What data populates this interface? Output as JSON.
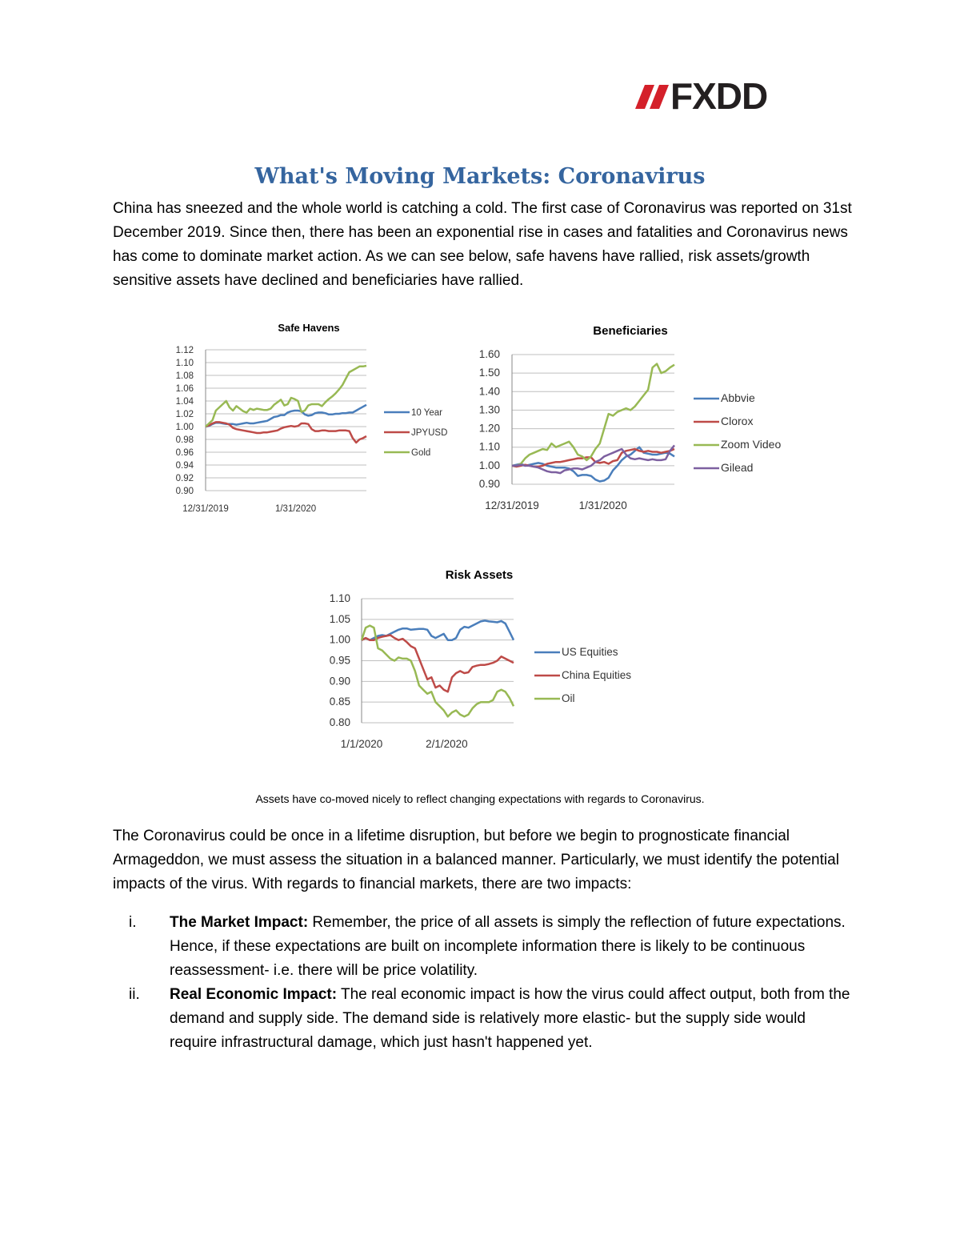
{
  "logo": {
    "text": "FXDD",
    "slash_color": "#d4202a",
    "text_color": "#231f20"
  },
  "title": "What's Moving Markets: Coronavirus",
  "intro": "China has sneezed and the whole world is catching a cold. The first case of Coronavirus was reported on 31st December 2019. Since then, there has been an exponential rise in cases and fatalities and Coronavirus news has come to dominate market action. As we can see below, safe havens have rallied, risk assets/growth sensitive assets have declined and beneficiaries have rallied.",
  "chart_data": [
    {
      "type": "line",
      "title": "Safe Havens",
      "x_ticks": [
        "12/31/2019",
        "1/31/2020"
      ],
      "y_ticks": [
        "1.12",
        "1.10",
        "1.08",
        "1.06",
        "1.04",
        "1.02",
        "1.00",
        "0.98",
        "0.96",
        "0.94",
        "0.92",
        "0.90"
      ],
      "ylim": [
        0.9,
        1.12
      ],
      "grid": true,
      "legend": "right",
      "series": [
        {
          "name": "10 Year",
          "color": "#4a7ebb",
          "values": [
            1.0,
            1.001,
            1.004,
            1.006,
            1.006,
            1.005,
            1.004,
            1.004,
            1.004,
            1.003,
            1.004,
            1.005,
            1.006,
            1.005,
            1.005,
            1.006,
            1.007,
            1.008,
            1.009,
            1.012,
            1.015,
            1.016,
            1.018,
            1.018,
            1.022,
            1.024,
            1.025,
            1.025,
            1.024,
            1.019,
            1.017,
            1.018,
            1.021,
            1.022,
            1.022,
            1.021,
            1.019,
            1.019,
            1.02,
            1.02,
            1.021,
            1.021,
            1.022,
            1.022,
            1.025,
            1.028,
            1.031,
            1.034
          ]
        },
        {
          "name": "JPYUSD",
          "color": "#be4b48",
          "values": [
            1.0,
            1.002,
            1.005,
            1.007,
            1.007,
            1.006,
            1.005,
            1.003,
            0.998,
            0.996,
            0.995,
            0.994,
            0.993,
            0.992,
            0.991,
            0.99,
            0.99,
            0.991,
            0.991,
            0.992,
            0.993,
            0.994,
            0.997,
            0.999,
            1.0,
            1.001,
            1.0,
            1.001,
            1.005,
            1.005,
            1.004,
            0.996,
            0.993,
            0.993,
            0.994,
            0.994,
            0.993,
            0.993,
            0.993,
            0.994,
            0.994,
            0.994,
            0.993,
            0.982,
            0.975,
            0.98,
            0.982,
            0.985
          ]
        },
        {
          "name": "Gold",
          "color": "#98b954",
          "values": [
            1.0,
            1.005,
            1.01,
            1.025,
            1.03,
            1.035,
            1.04,
            1.03,
            1.025,
            1.032,
            1.028,
            1.024,
            1.022,
            1.028,
            1.026,
            1.028,
            1.027,
            1.026,
            1.026,
            1.028,
            1.034,
            1.038,
            1.042,
            1.033,
            1.035,
            1.045,
            1.043,
            1.04,
            1.023,
            1.025,
            1.033,
            1.035,
            1.035,
            1.035,
            1.032,
            1.038,
            1.043,
            1.047,
            1.052,
            1.058,
            1.065,
            1.075,
            1.085,
            1.088,
            1.091,
            1.094,
            1.094,
            1.095
          ]
        }
      ]
    },
    {
      "type": "line",
      "title": "Beneficiaries",
      "x_ticks": [
        "12/31/2019",
        "1/31/2020"
      ],
      "y_ticks": [
        "1.60",
        "1.50",
        "1.40",
        "1.30",
        "1.20",
        "1.10",
        "1.00",
        "0.90"
      ],
      "ylim": [
        0.9,
        1.6
      ],
      "grid": true,
      "legend": "right",
      "series": [
        {
          "name": "Abbvie",
          "color": "#4a7ebb",
          "values": [
            1.0,
            1.005,
            1.01,
            1.0,
            1.005,
            1.01,
            1.015,
            1.01,
            1.0,
            0.995,
            0.99,
            0.99,
            0.99,
            0.985,
            0.97,
            0.945,
            0.95,
            0.95,
            0.945,
            0.925,
            0.915,
            0.92,
            0.935,
            0.975,
            1.0,
            1.03,
            1.05,
            1.06,
            1.08,
            1.1,
            1.07,
            1.065,
            1.06,
            1.06,
            1.065,
            1.07,
            1.065,
            1.05
          ]
        },
        {
          "name": "Clorox",
          "color": "#be4b48",
          "values": [
            1.0,
            0.995,
            1.0,
            1.005,
            1.0,
            0.995,
            0.995,
            1.0,
            1.01,
            1.015,
            1.02,
            1.02,
            1.025,
            1.03,
            1.035,
            1.04,
            1.04,
            1.045,
            1.045,
            1.02,
            1.015,
            1.02,
            1.01,
            1.025,
            1.03,
            1.07,
            1.08,
            1.085,
            1.09,
            1.08,
            1.075,
            1.08,
            1.075,
            1.075,
            1.07,
            1.075,
            1.08,
            1.09
          ]
        },
        {
          "name": "Zoom Video",
          "color": "#98b954",
          "values": [
            1.0,
            1.0,
            1.01,
            1.04,
            1.06,
            1.07,
            1.08,
            1.09,
            1.085,
            1.12,
            1.1,
            1.11,
            1.12,
            1.13,
            1.1,
            1.06,
            1.05,
            1.03,
            1.05,
            1.09,
            1.12,
            1.2,
            1.28,
            1.27,
            1.29,
            1.3,
            1.31,
            1.3,
            1.32,
            1.35,
            1.38,
            1.41,
            1.53,
            1.55,
            1.5,
            1.51,
            1.53,
            1.545
          ]
        },
        {
          "name": "Gilead",
          "color": "#7d60a0",
          "values": [
            1.0,
            1.0,
            1.005,
            1.0,
            1.0,
            0.995,
            0.99,
            0.98,
            0.97,
            0.965,
            0.965,
            0.96,
            0.975,
            0.98,
            0.985,
            0.985,
            0.98,
            0.99,
            1.0,
            1.02,
            1.03,
            1.05,
            1.06,
            1.07,
            1.08,
            1.09,
            1.06,
            1.04,
            1.035,
            1.04,
            1.035,
            1.03,
            1.035,
            1.03,
            1.03,
            1.035,
            1.08,
            1.11
          ]
        }
      ]
    },
    {
      "type": "line",
      "title": "Risk Assets",
      "x_ticks": [
        "1/1/2020",
        "2/1/2020"
      ],
      "y_ticks": [
        "1.10",
        "1.05",
        "1.00",
        "0.95",
        "0.90",
        "0.85",
        "0.80"
      ],
      "ylim": [
        0.8,
        1.1
      ],
      "grid": true,
      "legend": "right",
      "series": [
        {
          "name": "US Equities",
          "color": "#4a7ebb",
          "values": [
            1.0,
            1.005,
            1.0,
            1.005,
            1.01,
            1.012,
            1.01,
            1.015,
            1.02,
            1.025,
            1.028,
            1.028,
            1.025,
            1.026,
            1.027,
            1.027,
            1.025,
            1.01,
            1.005,
            1.01,
            1.015,
            1.0,
            1.0,
            1.005,
            1.025,
            1.032,
            1.03,
            1.035,
            1.04,
            1.045,
            1.047,
            1.045,
            1.044,
            1.043,
            1.046,
            1.04,
            1.02,
            1.0
          ]
        },
        {
          "name": "China Equities",
          "color": "#be4b48",
          "values": [
            1.0,
            1.005,
            1.0,
            1.0,
            1.005,
            1.008,
            1.01,
            1.012,
            1.005,
            1.0,
            1.003,
            0.995,
            0.985,
            0.98,
            0.955,
            0.93,
            0.905,
            0.91,
            0.885,
            0.89,
            0.88,
            0.875,
            0.91,
            0.92,
            0.925,
            0.92,
            0.922,
            0.935,
            0.938,
            0.94,
            0.94,
            0.942,
            0.945,
            0.95,
            0.96,
            0.955,
            0.95,
            0.945
          ]
        },
        {
          "name": "Oil",
          "color": "#98b954",
          "values": [
            1.0,
            1.03,
            1.035,
            1.03,
            0.98,
            0.975,
            0.965,
            0.955,
            0.95,
            0.958,
            0.955,
            0.955,
            0.95,
            0.925,
            0.89,
            0.88,
            0.87,
            0.875,
            0.85,
            0.84,
            0.83,
            0.815,
            0.825,
            0.83,
            0.82,
            0.815,
            0.82,
            0.835,
            0.845,
            0.85,
            0.85,
            0.85,
            0.855,
            0.875,
            0.88,
            0.875,
            0.86,
            0.84
          ]
        }
      ]
    }
  ],
  "caption": "Assets have co-moved nicely to reflect changing expectations with regards to Coronavirus.",
  "body_paragraph": "The Coronavirus could be once in a lifetime disruption, but before we begin to prognosticate financial Armageddon, we must assess the situation in a balanced manner. Particularly, we must identify the potential impacts of the virus. With regards to financial markets, there are two impacts:",
  "impacts": [
    {
      "num": "i.",
      "heading": "The Market Impact:",
      "text": " Remember, the price of all assets is simply the reflection of future expectations. Hence, if these expectations are built on incomplete information there is likely to be continuous reassessment- i.e. there will be price volatility."
    },
    {
      "num": "ii.",
      "heading": "Real Economic Impact:",
      "text": " The real economic impact is how the virus could affect output, both from the demand and supply side. The demand side is relatively more elastic- but the supply side would require infrastructural damage, which just hasn't happened yet."
    }
  ]
}
